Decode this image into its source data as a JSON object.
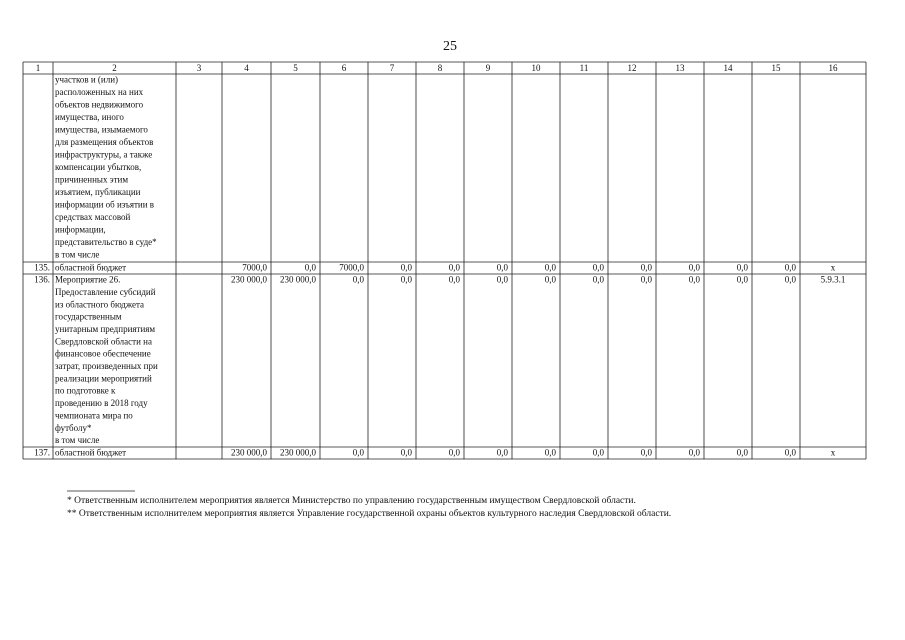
{
  "page_number": "25",
  "table": {
    "header": [
      "1",
      "2",
      "3",
      "4",
      "5",
      "6",
      "7",
      "8",
      "9",
      "10",
      "11",
      "12",
      "13",
      "14",
      "15",
      "16"
    ],
    "rows": [
      {
        "name": [
          "участков и (или)",
          "расположенных на них",
          "объектов недвижимого",
          "имущества, иного",
          "имущества, изымаемого",
          "для размещения объектов",
          "инфраструктуры, а также",
          "компенсации убытков,",
          "причиненных этим",
          "изъятием, публикации",
          "информации об изъятии в",
          "средствах массовой",
          "информации,",
          "представительство в суде*",
          "в том числе"
        ]
      },
      {
        "number": "135.",
        "name": [
          "областной бюджет"
        ],
        "values": [
          "7000,0",
          "0,0",
          "7000,0",
          "0,0",
          "0,0",
          "0,0",
          "0,0",
          "0,0",
          "0,0",
          "0,0",
          "0,0",
          "0,0"
        ],
        "code": "x"
      },
      {
        "number": "136.",
        "name": [
          "Мероприятие 26.",
          "Предоставление субсидий",
          "из областного бюджета",
          "государственным",
          "унитарным предприятиям",
          "Свердловской области на",
          "финансовое обеспечение",
          "затрат, произведенных при",
          "реализации мероприятий",
          "по подготовке к",
          "проведению в 2018 году",
          "чемпионата мира по",
          "футболу*",
          "в том числе"
        ],
        "values": [
          "230 000,0",
          "230 000,0",
          "0,0",
          "0,0",
          "0,0",
          "0,0",
          "0,0",
          "0,0",
          "0,0",
          "0,0",
          "0,0",
          "0,0"
        ],
        "code": "5.9.3.1"
      },
      {
        "number": "137.",
        "name": [
          "областной бюджет"
        ],
        "values": [
          "230 000,0",
          "230 000,0",
          "0,0",
          "0,0",
          "0,0",
          "0,0",
          "0,0",
          "0,0",
          "0,0",
          "0,0",
          "0,0",
          "0,0"
        ],
        "code": "x"
      }
    ]
  },
  "footnotes": [
    "* Ответственным исполнителем мероприятия является Министерство по управлению государственным имуществом Свердловской области.",
    "** Ответственным исполнителем мероприятия является  Управление государственной охраны объектов культурного наследия Свердловской области."
  ]
}
